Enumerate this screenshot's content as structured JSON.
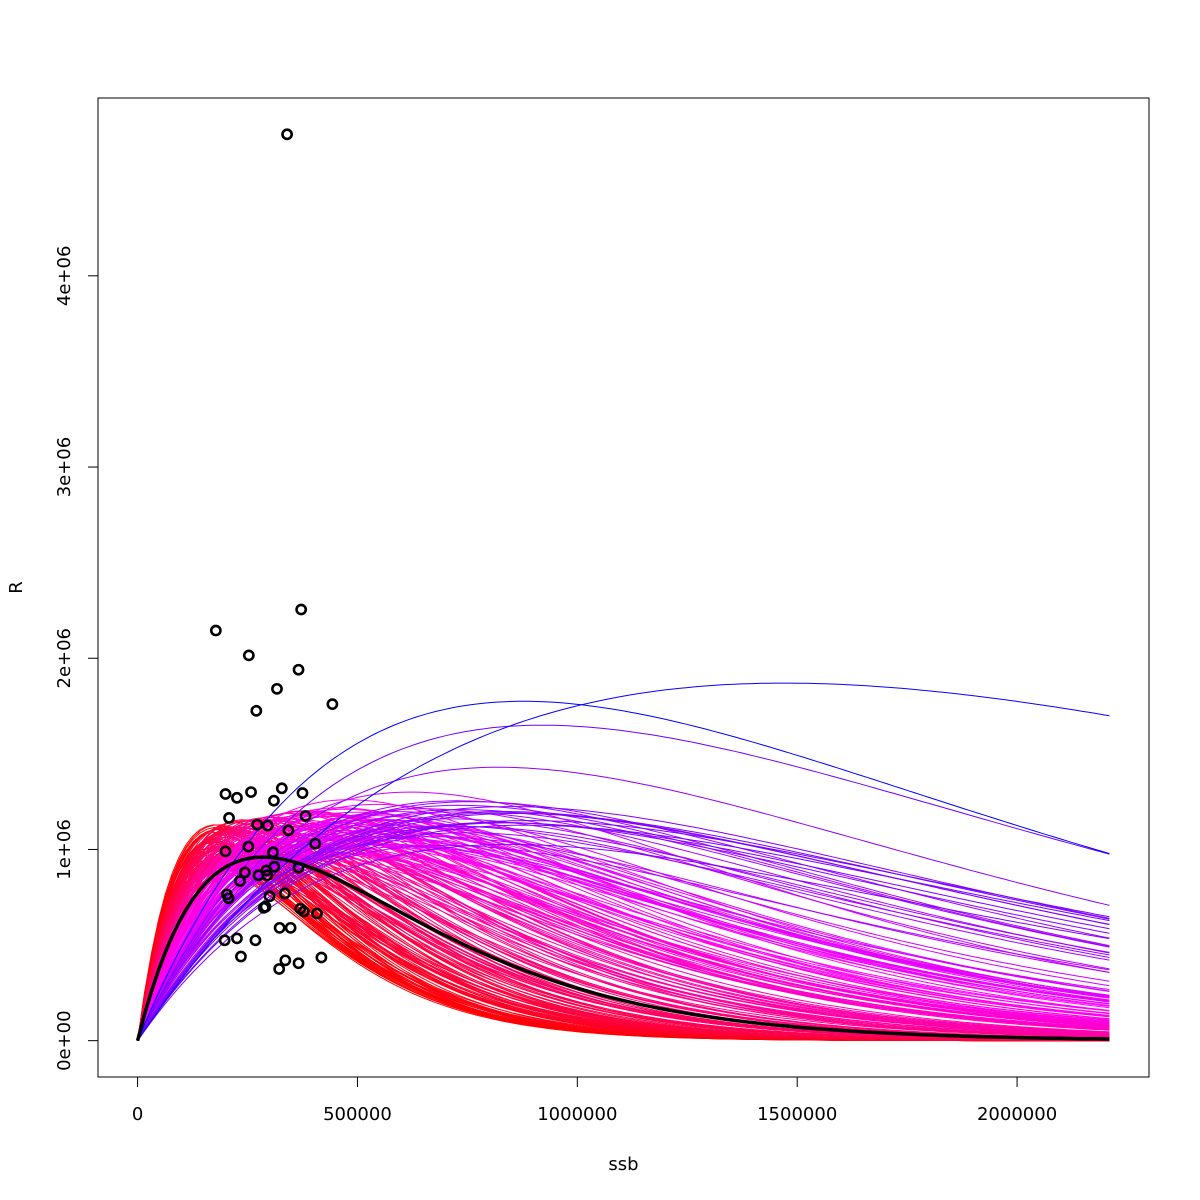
{
  "chart_data": {
    "type": "scatter",
    "title": "",
    "xlabel": "ssb",
    "ylabel": "R",
    "xlim": [
      -90000,
      2300000
    ],
    "ylim": [
      -190000,
      4930000
    ],
    "x_ticks": [
      0,
      500000,
      1000000,
      1500000,
      2000000
    ],
    "x_tick_labels": [
      "0",
      "500000",
      "1000000",
      "1500000",
      "2000000"
    ],
    "y_ticks": [
      0,
      1000000,
      2000000,
      3000000,
      4000000
    ],
    "y_tick_labels": [
      "0e+00",
      "1e+06",
      "2e+06",
      "3e+06",
      "4e+06"
    ],
    "grid": false,
    "legend": "none",
    "colors": {
      "points": "#000000",
      "mean_curve": "#000000",
      "curve_low": "#ff0000",
      "curve_mid": "#ff00ff",
      "curve_high": "#0000ff"
    },
    "observations": {
      "name": "observations",
      "x": [
        340000,
        178000,
        372000,
        253000,
        366000,
        317000,
        443000,
        270000,
        200000,
        226000,
        258000,
        310000,
        328000,
        375000,
        208000,
        272000,
        296000,
        343000,
        382000,
        404000,
        200000,
        252000,
        308000,
        233000,
        311000,
        293000,
        244000,
        275000,
        366000,
        295000,
        203000,
        300000,
        207000,
        287000,
        335000,
        291000,
        370000,
        378000,
        408000,
        323000,
        348000,
        198000,
        226000,
        268000,
        235000,
        418000,
        336000,
        366000,
        322000
      ],
      "y": [
        4740000,
        2145000,
        2255000,
        2015000,
        1940000,
        1840000,
        1760000,
        1725000,
        1290000,
        1270000,
        1300000,
        1255000,
        1320000,
        1295000,
        1165000,
        1130000,
        1125000,
        1100000,
        1175000,
        1030000,
        990000,
        1015000,
        985000,
        835000,
        910000,
        890000,
        880000,
        865000,
        905000,
        865000,
        765000,
        755000,
        745000,
        695000,
        770000,
        700000,
        690000,
        675000,
        665000,
        590000,
        590000,
        525000,
        535000,
        525000,
        440000,
        435000,
        420000,
        405000,
        375000
      ]
    },
    "curves": {
      "model": "Ricker-type R = a*ssb*exp(-b*ssb)",
      "x_range": [
        0,
        2210000
      ],
      "peak_ssb_range": [
        175000,
        1470000
      ],
      "peak_r_range": [
        950000,
        1870000
      ],
      "highlighted": [
        {
          "peak_ssb": 1470000,
          "peak_r": 1870000
        },
        {
          "peak_ssb": 920000,
          "peak_r": 1650000
        },
        {
          "peak_ssb": 820000,
          "peak_r": 1430000
        },
        {
          "peak_ssb": 620000,
          "peak_r": 1300000
        },
        {
          "peak_ssb": 480000,
          "peak_r": 1260000
        }
      ],
      "saturating": {
        "a": 5.5,
        "b": 1.14e-06
      }
    },
    "mean_curve": {
      "name": "fitted",
      "peak_ssb": 285000,
      "peak_r": 960000
    }
  }
}
